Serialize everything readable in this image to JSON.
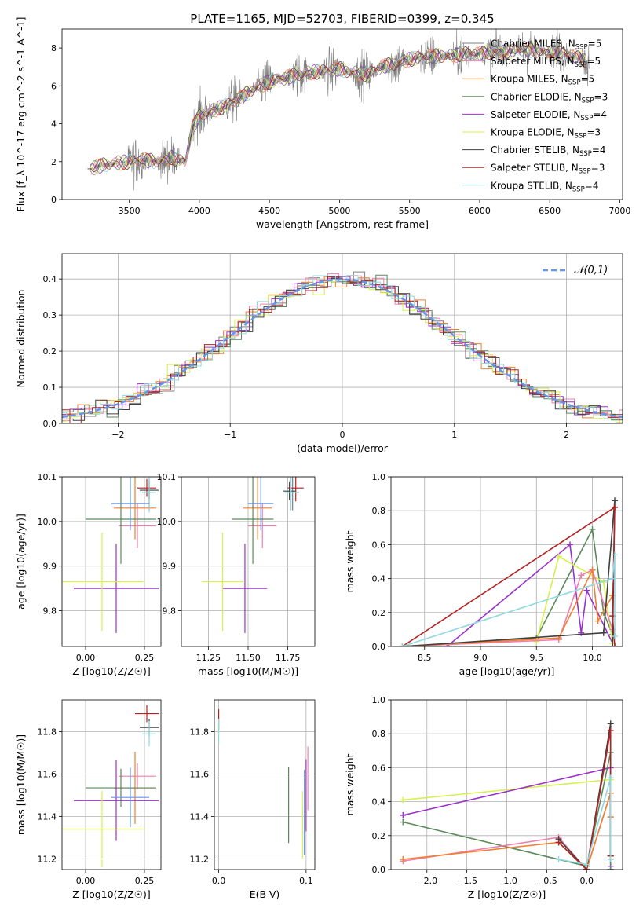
{
  "suptitle": "PLATE=1165, MJD=52703, FIBERID=0399, z=0.345",
  "colors": [
    "#7f7f7f",
    "#f07fb0",
    "#f08030",
    "#5a8a5a",
    "#9932cc",
    "#d8f050",
    "#404040",
    "#b22222",
    "#90d8e0"
  ],
  "chart_data": [
    {
      "id": "spectrum",
      "type": "line",
      "title": "",
      "xlabel": "wavelength [Angstrom, rest frame]",
      "ylabel": "Flux [f_λ 10^-17 erg cm^-2 s^-1 A^-1]",
      "xlim": [
        3020,
        7020
      ],
      "ylim": [
        0,
        9
      ],
      "xticks": [
        3500,
        4000,
        4500,
        5000,
        5500,
        6000,
        6500,
        7000
      ],
      "yticks": [
        0,
        2,
        4,
        6,
        8
      ],
      "grid": false,
      "legend_position": "right",
      "continuum": {
        "x": [
          3200,
          3300,
          3400,
          3500,
          3600,
          3700,
          3800,
          3900,
          3950,
          4000,
          4100,
          4200,
          4300,
          4400,
          4500,
          4600,
          4700,
          4800,
          4900,
          5000,
          5100,
          5200,
          5300,
          5400,
          5500,
          5600,
          5700,
          5800,
          5900,
          6000,
          6100,
          6200,
          6300,
          6400,
          6500,
          6600,
          6700,
          6780
        ],
        "y": [
          1.6,
          1.8,
          1.9,
          2.0,
          2.1,
          2.0,
          2.2,
          2.0,
          3.8,
          4.4,
          4.7,
          5.0,
          5.4,
          5.9,
          6.2,
          6.4,
          6.6,
          6.7,
          6.8,
          6.9,
          6.7,
          6.6,
          7.0,
          7.2,
          7.4,
          7.5,
          7.6,
          7.6,
          7.7,
          7.7,
          7.8,
          7.8,
          7.9,
          7.9,
          7.8,
          7.7,
          7.5,
          7.3
        ]
      },
      "observed_noise_amplitude": 0.9,
      "series": [
        {
          "name": "Chabrier MILES, N_SSP=5",
          "color": "#7f7f7f"
        },
        {
          "name": "Salpeter MILES, N_SSP=5",
          "color": "#f07fb0"
        },
        {
          "name": "Kroupa MILES, N_SSP=5",
          "color": "#f08030"
        },
        {
          "name": "Chabrier ELODIE, N_SSP=3",
          "color": "#5a8a5a"
        },
        {
          "name": "Salpeter ELODIE, N_SSP=4",
          "color": "#9932cc"
        },
        {
          "name": "Kroupa ELODIE, N_SSP=3",
          "color": "#d8f050"
        },
        {
          "name": "Chabrier STELIB, N_SSP=4",
          "color": "#404040"
        },
        {
          "name": "Salpeter STELIB, N_SSP=3",
          "color": "#b22222"
        },
        {
          "name": "Kroupa STELIB, N_SSP=4",
          "color": "#90d8e0"
        }
      ]
    },
    {
      "id": "residuals",
      "type": "line",
      "title": "",
      "xlabel": "(data-model)/error",
      "ylabel": "Normed distribution",
      "xlim": [
        -2.5,
        2.5
      ],
      "ylim": [
        0,
        0.47
      ],
      "xticks": [
        -2,
        -1,
        0,
        1,
        2
      ],
      "yticks": [
        0.0,
        0.1,
        0.2,
        0.3,
        0.4
      ],
      "grid": true,
      "legend_position": "top-right",
      "reference_curve": {
        "name": "𝒩(0,1)",
        "color": "#6495ed",
        "style": "dashed"
      },
      "bin_width": 0.1
    },
    {
      "id": "age-vs-Z",
      "type": "scatter",
      "xlabel": "Z [log10(Z/Z☉)]",
      "ylabel": "age  [log10(age/yr)]",
      "xlim": [
        -0.1,
        0.32
      ],
      "ylim": [
        9.72,
        10.1
      ],
      "xticks": [
        0.0,
        0.25
      ],
      "yticks": [
        9.8,
        9.9,
        10.0,
        10.1
      ],
      "grid": true,
      "points": [
        {
          "x": 0.27,
          "y": 10.065,
          "xerr": 0.03,
          "yerr": 0.04,
          "color": "#7f7f7f"
        },
        {
          "x": 0.22,
          "y": 9.99,
          "xerr": 0.08,
          "yerr": 0.05,
          "color": "#f07fb0"
        },
        {
          "x": 0.21,
          "y": 10.03,
          "xerr": 0.09,
          "yerr": 0.07,
          "color": "#f08030"
        },
        {
          "x": 0.15,
          "y": 10.005,
          "xerr": 0.15,
          "yerr": 0.1,
          "color": "#5a8a5a"
        },
        {
          "x": 0.13,
          "y": 9.85,
          "xerr": 0.18,
          "yerr": 0.1,
          "color": "#9932cc"
        },
        {
          "x": 0.07,
          "y": 9.865,
          "xerr": 0.18,
          "yerr": 0.11,
          "color": "#d8f050"
        },
        {
          "x": 0.27,
          "y": 10.07,
          "xerr": 0.04,
          "yerr": 0.02,
          "color": "#404040"
        },
        {
          "x": 0.26,
          "y": 10.075,
          "xerr": 0.04,
          "yerr": 0.02,
          "color": "#b22222"
        },
        {
          "x": 0.27,
          "y": 10.065,
          "xerr": 0.03,
          "yerr": 0.045,
          "color": "#90d8e0"
        },
        {
          "x": 0.19,
          "y": 10.04,
          "xerr": 0.08,
          "yerr": 0.06,
          "color": "#6495ed"
        }
      ]
    },
    {
      "id": "age-vs-mass",
      "type": "scatter",
      "xlabel": "mass [log10(M/M☉)]",
      "ylabel": "",
      "xlim": [
        11.08,
        11.92
      ],
      "ylim": [
        9.72,
        10.1
      ],
      "xticks": [
        11.25,
        11.5,
        11.75
      ],
      "yticks": [
        9.8,
        9.9,
        10.0,
        10.1
      ],
      "grid": true,
      "points": [
        {
          "x": 11.78,
          "y": 10.065,
          "xerr": 0.04,
          "yerr": 0.04,
          "color": "#7f7f7f"
        },
        {
          "x": 11.59,
          "y": 9.99,
          "xerr": 0.09,
          "yerr": 0.05,
          "color": "#f07fb0"
        },
        {
          "x": 11.56,
          "y": 10.03,
          "xerr": 0.09,
          "yerr": 0.07,
          "color": "#f08030"
        },
        {
          "x": 11.53,
          "y": 10.005,
          "xerr": 0.13,
          "yerr": 0.1,
          "color": "#5a8a5a"
        },
        {
          "x": 11.48,
          "y": 9.85,
          "xerr": 0.14,
          "yerr": 0.1,
          "color": "#9932cc"
        },
        {
          "x": 11.34,
          "y": 9.865,
          "xerr": 0.13,
          "yerr": 0.11,
          "color": "#d8f050"
        },
        {
          "x": 11.76,
          "y": 10.068,
          "xerr": 0.04,
          "yerr": 0.02,
          "color": "#404040"
        },
        {
          "x": 11.8,
          "y": 10.075,
          "xerr": 0.05,
          "yerr": 0.03,
          "color": "#b22222"
        },
        {
          "x": 11.77,
          "y": 10.065,
          "xerr": 0.04,
          "yerr": 0.04,
          "color": "#90d8e0"
        },
        {
          "x": 11.58,
          "y": 10.04,
          "xerr": 0.08,
          "yerr": 0.06,
          "color": "#6495ed"
        }
      ]
    },
    {
      "id": "massweight-vs-age",
      "type": "line",
      "xlabel": "age  [log10(age/yr)]",
      "ylabel": "mass weight",
      "xlim": [
        8.2,
        10.27
      ],
      "ylim": [
        0,
        1
      ],
      "xticks": [
        8.5,
        9.0,
        9.5,
        10.0
      ],
      "yticks": [
        0.0,
        0.2,
        0.4,
        0.6,
        0.8,
        1.0
      ],
      "grid": true,
      "series": [
        {
          "color": "#5a8a5a",
          "x": [
            8.3,
            9.5,
            10.0,
            10.1,
            10.18
          ],
          "y": [
            0.0,
            0.05,
            0.69,
            0.2,
            0.07
          ]
        },
        {
          "color": "#9932cc",
          "x": [
            8.7,
            9.8,
            9.9,
            9.95,
            10.18
          ],
          "y": [
            0.0,
            0.6,
            0.08,
            0.33,
            0.02
          ]
        },
        {
          "color": "#d8f050",
          "x": [
            9.5,
            9.7,
            10.1,
            10.18
          ],
          "y": [
            0.03,
            0.53,
            0.38,
            0.02
          ]
        },
        {
          "color": "#f07fb0",
          "x": [
            8.3,
            9.7,
            9.9,
            10.0,
            10.18
          ],
          "y": [
            0.0,
            0.04,
            0.42,
            0.45,
            0.1
          ]
        },
        {
          "color": "#f08030",
          "x": [
            8.3,
            9.7,
            10.0,
            10.05,
            10.18
          ],
          "y": [
            0.0,
            0.05,
            0.45,
            0.15,
            0.3
          ]
        },
        {
          "color": "#404040",
          "x": [
            8.3,
            10.1,
            10.2,
            10.18
          ],
          "y": [
            0.0,
            0.08,
            0.86,
            0.0
          ]
        },
        {
          "color": "#b22222",
          "x": [
            8.3,
            10.2,
            10.18,
            10.2
          ],
          "y": [
            0.0,
            0.82,
            0.18,
            0.0
          ]
        },
        {
          "color": "#90d8e0",
          "x": [
            8.3,
            10.18,
            10.2,
            10.2
          ],
          "y": [
            0.0,
            0.4,
            0.54,
            0.06
          ]
        }
      ]
    },
    {
      "id": "mass-vs-Z",
      "type": "scatter",
      "xlabel": "Z [log10(Z/Z☉)]",
      "ylabel": "mass [log10(M/M☉)]",
      "xlim": [
        -0.1,
        0.32
      ],
      "ylim": [
        11.15,
        11.95
      ],
      "xticks": [
        0.0,
        0.25
      ],
      "yticks": [
        11.2,
        11.4,
        11.6,
        11.8
      ],
      "grid": true,
      "points": [
        {
          "x": 0.27,
          "y": 11.82,
          "xerr": 0.04,
          "yerr": 0.04,
          "color": "#404040"
        },
        {
          "x": 0.26,
          "y": 11.885,
          "xerr": 0.05,
          "yerr": 0.04,
          "color": "#b22222"
        },
        {
          "x": 0.27,
          "y": 11.79,
          "xerr": 0.03,
          "yerr": 0.06,
          "color": "#90d8e0"
        },
        {
          "x": 0.22,
          "y": 11.59,
          "xerr": 0.08,
          "yerr": 0.06,
          "color": "#f07fb0"
        },
        {
          "x": 0.21,
          "y": 11.535,
          "xerr": 0.09,
          "yerr": 0.17,
          "color": "#f08030"
        },
        {
          "x": 0.15,
          "y": 11.535,
          "xerr": 0.15,
          "yerr": 0.09,
          "color": "#5a8a5a"
        },
        {
          "x": 0.13,
          "y": 11.475,
          "xerr": 0.18,
          "yerr": 0.19,
          "color": "#9932cc"
        },
        {
          "x": 0.07,
          "y": 11.34,
          "xerr": 0.18,
          "yerr": 0.18,
          "color": "#d8f050"
        },
        {
          "x": 0.19,
          "y": 11.49,
          "xerr": 0.08,
          "yerr": 0.14,
          "color": "#6495ed"
        }
      ]
    },
    {
      "id": "mass-vs-ebv",
      "type": "scatter",
      "xlabel": "E(B-V)",
      "ylabel": "",
      "xlim": [
        -0.005,
        0.11
      ],
      "ylim": [
        11.15,
        11.95
      ],
      "xticks": [
        0.0,
        0.1
      ],
      "yticks": [
        11.2,
        11.4,
        11.6,
        11.8
      ],
      "grid": true,
      "points": [
        {
          "x": 0.0,
          "y": 11.855,
          "xerr": 0,
          "yerr": 0.05,
          "color": "#b22222"
        },
        {
          "x": 0.0,
          "y": 11.8,
          "xerr": 0,
          "yerr": 0.06,
          "color": "#90d8e0"
        },
        {
          "x": 0.08,
          "y": 11.455,
          "xerr": 0,
          "yerr": 0.18,
          "color": "#5a8a5a"
        },
        {
          "x": 0.096,
          "y": 11.36,
          "xerr": 0,
          "yerr": 0.16,
          "color": "#d8f050"
        },
        {
          "x": 0.1,
          "y": 11.5,
          "xerr": 0,
          "yerr": 0.17,
          "color": "#9932cc"
        },
        {
          "x": 0.102,
          "y": 11.58,
          "xerr": 0,
          "yerr": 0.15,
          "color": "#f07fb0"
        },
        {
          "x": 0.098,
          "y": 11.42,
          "xerr": 0,
          "yerr": 0.2,
          "color": "#6495ed"
        }
      ]
    },
    {
      "id": "massweight-vs-Z",
      "type": "line",
      "xlabel": "Z [log10(Z/Z☉)]",
      "ylabel": "mass weight",
      "xlim": [
        -2.45,
        0.45
      ],
      "ylim": [
        0,
        1
      ],
      "xticks": [
        -2.0,
        -1.5,
        -1.0,
        -0.5,
        0.0
      ],
      "yticks": [
        0.0,
        0.2,
        0.4,
        0.6,
        0.8,
        1.0
      ],
      "grid": true,
      "series": [
        {
          "color": "#d8f050",
          "x": [
            -2.3,
            0.3,
            0.3
          ],
          "y": [
            0.41,
            0.53,
            0.06
          ]
        },
        {
          "color": "#9932cc",
          "x": [
            -2.3,
            0.3,
            0.3,
            0.3
          ],
          "y": [
            0.32,
            0.6,
            0.0,
            0.02
          ]
        },
        {
          "color": "#5a8a5a",
          "x": [
            -2.3,
            0.0,
            0.3,
            0.3
          ],
          "y": [
            0.28,
            0.02,
            0.69,
            0.0
          ]
        },
        {
          "color": "#f07fb0",
          "x": [
            -2.3,
            -0.35,
            0.0,
            0.3,
            0.3
          ],
          "y": [
            0.05,
            0.19,
            0.0,
            0.45,
            0.31
          ]
        },
        {
          "color": "#f08030",
          "x": [
            -2.3,
            -0.35,
            0.0,
            0.3,
            0.3
          ],
          "y": [
            0.06,
            0.16,
            0.0,
            0.45,
            0.31
          ]
        },
        {
          "color": "#404040",
          "x": [
            -0.35,
            0.0,
            0.3,
            0.3
          ],
          "y": [
            0.18,
            0.0,
            0.86,
            0.08
          ]
        },
        {
          "color": "#b22222",
          "x": [
            -0.35,
            0.0,
            0.3,
            0.3
          ],
          "y": [
            0.16,
            0.0,
            0.82,
            0.08
          ]
        },
        {
          "color": "#90d8e0",
          "x": [
            -0.35,
            0.0,
            0.3,
            0.3
          ],
          "y": [
            0.06,
            0.03,
            0.54,
            0.06
          ]
        }
      ]
    }
  ]
}
